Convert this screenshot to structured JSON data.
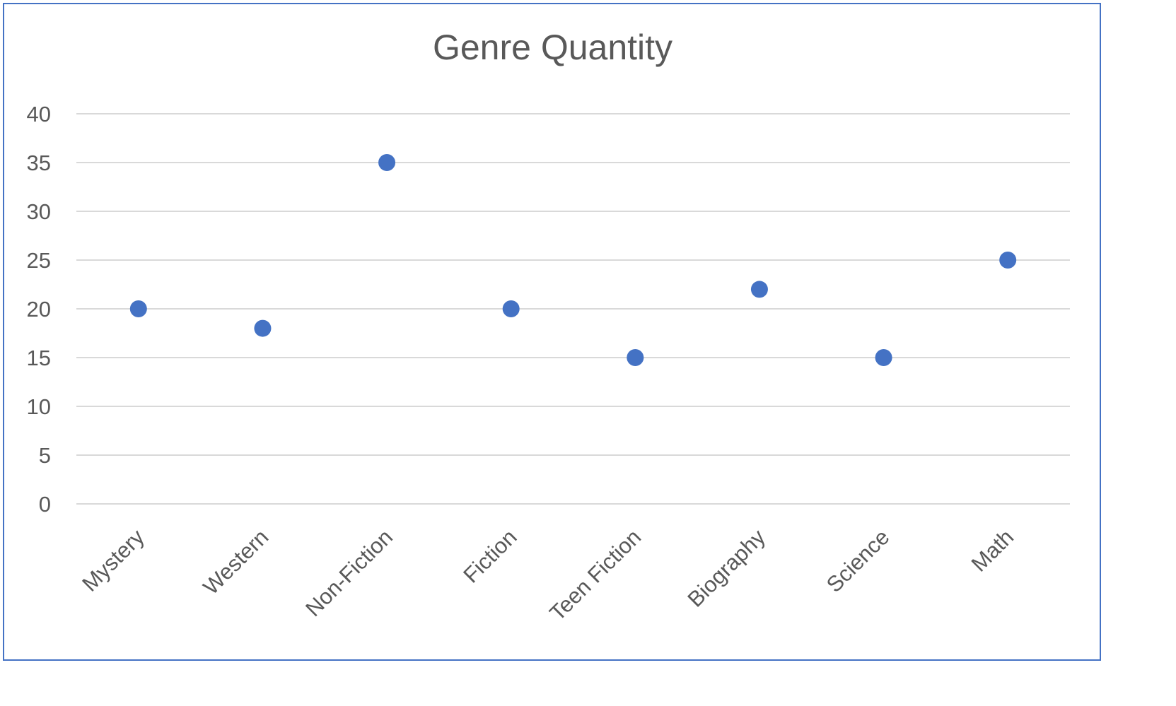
{
  "chart_data": {
    "type": "scatter",
    "title": "Genre Quantity",
    "xlabel": "",
    "ylabel": "",
    "categories": [
      "Mystery",
      "Western",
      "Non-Fiction",
      "Fiction",
      "Teen Fiction",
      "Biography",
      "Science",
      "Math"
    ],
    "values": [
      20,
      18,
      35,
      20,
      15,
      22,
      15,
      25
    ],
    "ylim": [
      0,
      40
    ],
    "yticks": [
      0,
      5,
      10,
      15,
      20,
      25,
      30,
      35,
      40
    ],
    "grid": true,
    "legend": "none",
    "colors": {
      "marker": "#4472c4",
      "grid": "#d9d9d9",
      "text": "#595959",
      "border": "#4472c4"
    }
  }
}
